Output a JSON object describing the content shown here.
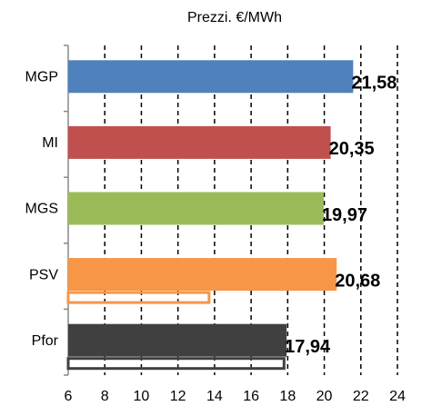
{
  "chart_data": {
    "type": "bar",
    "orientation": "horizontal",
    "title": "Prezzi. €/MWh",
    "categories": [
      "MGP",
      "MI",
      "MGS",
      "PSV",
      "Pfor"
    ],
    "series": [
      {
        "colors": [
          "#4f81bd",
          "#c0504d",
          "#9bbb59",
          "#f79646",
          "#404040"
        ],
        "values": [
          21.58,
          20.35,
          19.97,
          20.68,
          17.94
        ],
        "value_labels": [
          "21,58",
          "20,35",
          "19,97",
          "20,68",
          "17,94"
        ]
      },
      {
        "colors": [
          "#4f81bd",
          "#c0504d",
          "#9bbb59",
          "#f79646",
          "#404040"
        ],
        "style": "outline",
        "values": [
          null,
          null,
          null,
          13.7,
          17.8
        ]
      }
    ],
    "xlim": [
      6,
      24
    ],
    "xticks": [
      6,
      8,
      10,
      12,
      14,
      16,
      18,
      20,
      22,
      24
    ],
    "grid": true
  }
}
